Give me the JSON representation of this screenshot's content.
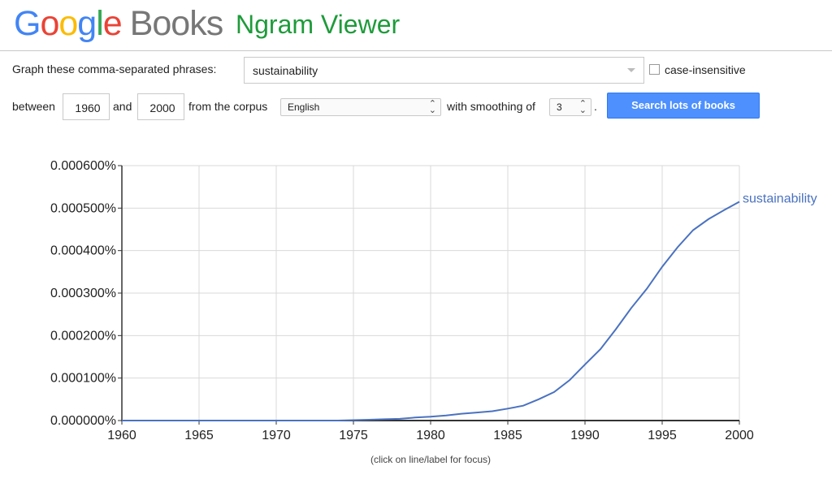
{
  "header": {
    "logo_google": [
      "G",
      "o",
      "o",
      "g",
      "l",
      "e"
    ],
    "logo_books": "Books",
    "title": "Ngram Viewer"
  },
  "form": {
    "phrases_label": "Graph these comma-separated phrases:",
    "phrases_value": "sustainability",
    "case_insensitive_label": "case-insensitive",
    "case_insensitive_checked": false,
    "between_label": "between",
    "year_start": "1960",
    "and_label": "and",
    "year_end": "2000",
    "corpus_label": "from the corpus",
    "corpus_value": "English",
    "smoothing_label": "with smoothing of",
    "smoothing_value": "3",
    "period": ".",
    "search_button": "Search lots of books"
  },
  "chart_data": {
    "type": "line",
    "title": "",
    "xlabel": "",
    "ylabel": "",
    "xlim": [
      1960,
      2000
    ],
    "ylim": [
      0,
      0.0006
    ],
    "x_ticks": [
      1960,
      1965,
      1970,
      1975,
      1980,
      1985,
      1990,
      1995,
      2000
    ],
    "y_ticks": [
      "0.000000%",
      "0.000100%",
      "0.000200%",
      "0.000300%",
      "0.000400%",
      "0.000500%",
      "0.000600%"
    ],
    "grid": true,
    "series": [
      {
        "name": "sustainability",
        "color": "#4a72c0",
        "x": [
          1960,
          1962,
          1964,
          1966,
          1968,
          1970,
          1972,
          1974,
          1975,
          1976,
          1977,
          1978,
          1979,
          1980,
          1981,
          1982,
          1983,
          1984,
          1985,
          1986,
          1987,
          1988,
          1989,
          1990,
          1991,
          1992,
          1993,
          1994,
          1995,
          1996,
          1997,
          1998,
          1999,
          2000
        ],
        "y": [
          0,
          0,
          0,
          0,
          0,
          0,
          0,
          0,
          1e-06,
          2e-06,
          3e-06,
          4e-06,
          7e-06,
          9e-06,
          1.2e-05,
          1.6e-05,
          1.9e-05,
          2.2e-05,
          2.8e-05,
          3.5e-05,
          5e-05,
          6.7e-05,
          9.5e-05,
          0.000132,
          0.000168,
          0.000215,
          0.000265,
          0.00031,
          0.000362,
          0.000408,
          0.000448,
          0.000474,
          0.000495,
          0.000515
        ]
      }
    ]
  },
  "footnote": "(click on line/label for focus)"
}
